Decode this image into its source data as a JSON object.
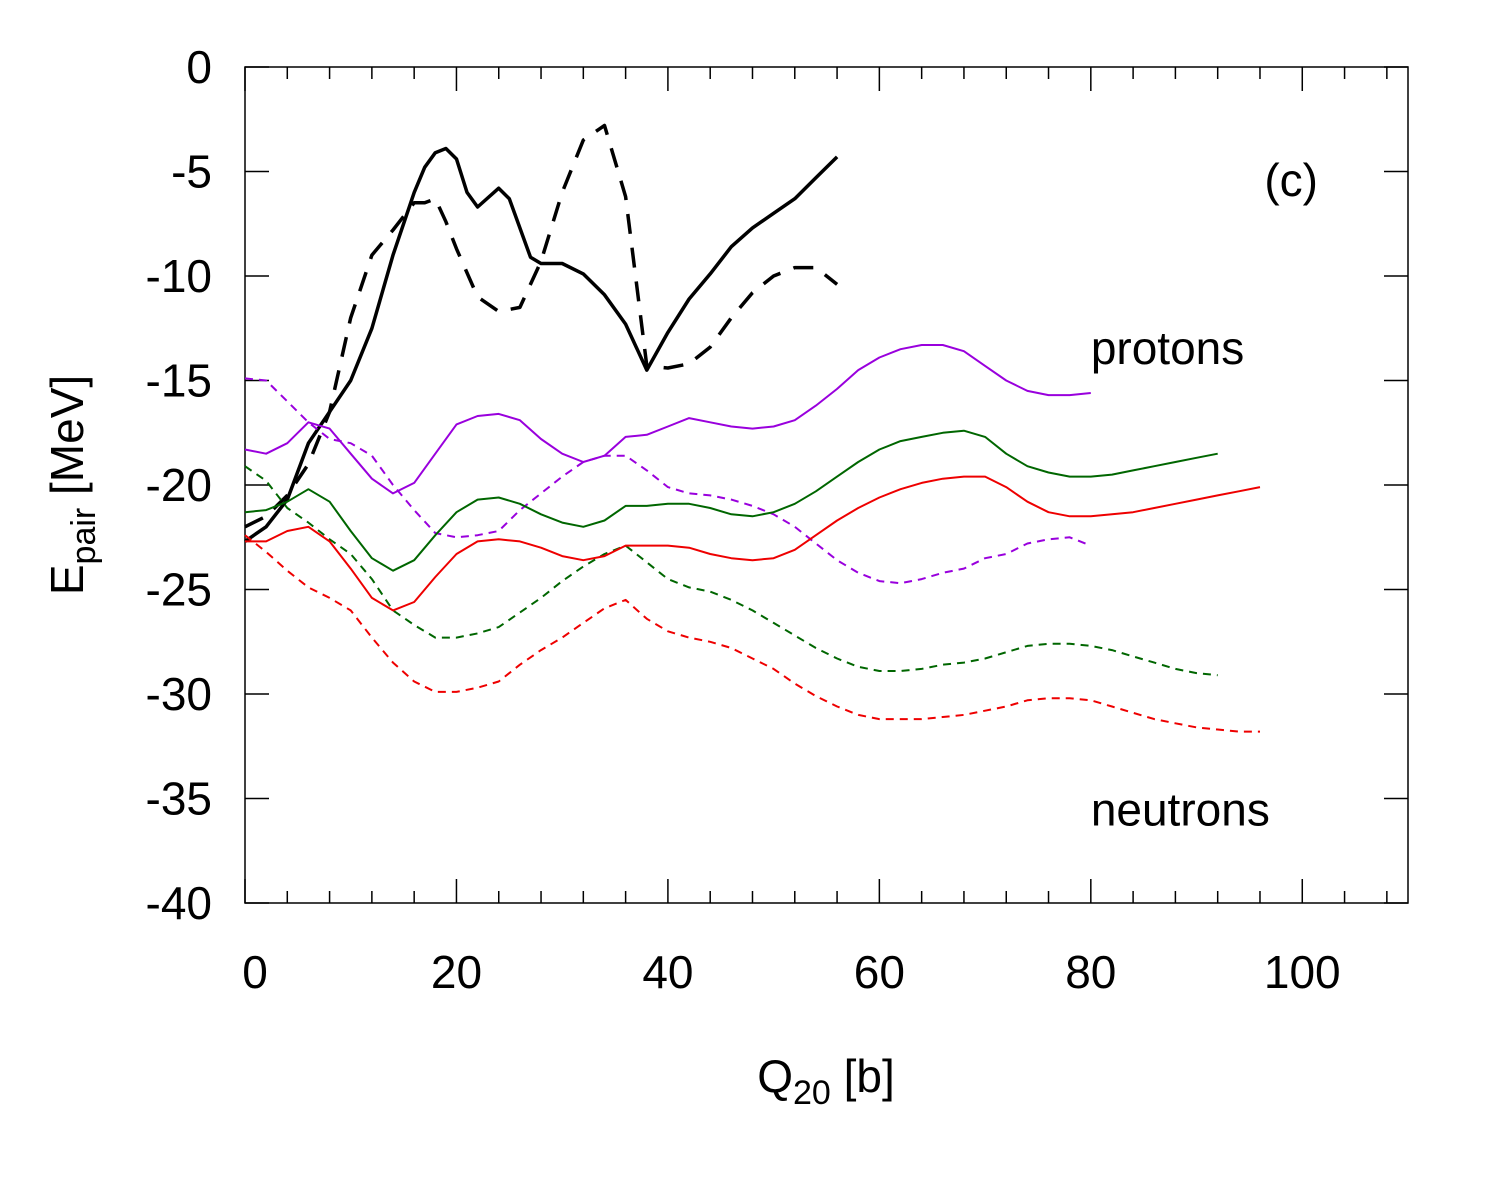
{
  "chart_data": {
    "type": "line",
    "panel_label": "(c)",
    "xlabel": {
      "main": "Q",
      "sub": "20",
      "unit": " [b]"
    },
    "ylabel": {
      "main": "E",
      "sub": "pair",
      "unit": " [MeV]"
    },
    "xlim": [
      0,
      110
    ],
    "ylim": [
      -40,
      0
    ],
    "xticks": [
      0,
      20,
      40,
      60,
      80,
      100
    ],
    "xtick_labels": [
      "0",
      "20",
      "40",
      "60",
      "80",
      "100"
    ],
    "yticks": [
      0,
      -5,
      -10,
      -15,
      -20,
      -25,
      -30,
      -35,
      -40
    ],
    "ytick_labels": [
      "0",
      "-5",
      "-10",
      "-15",
      "-20",
      "-25",
      "-30",
      "-35",
      "-40"
    ],
    "annotations": [
      {
        "name": "protons-label",
        "text": "protons",
        "x": 80,
        "y": -14.2
      },
      {
        "name": "neutrons-label",
        "text": "neutrons",
        "x": 80,
        "y": -36.3
      }
    ],
    "series": [
      {
        "name": "black-solid",
        "color": "#000000",
        "dash": "solid",
        "width": 3.5,
        "x": [
          0,
          2,
          4,
          6,
          8,
          10,
          12,
          14,
          16,
          17,
          18,
          19,
          20,
          21,
          22,
          24,
          25,
          27,
          28,
          30,
          32,
          34,
          36,
          38,
          40,
          42,
          44,
          46,
          48,
          50,
          52,
          54,
          56
        ],
        "y": [
          -22.7,
          -22,
          -20.7,
          -18,
          -16.5,
          -15,
          -12.5,
          -9,
          -6,
          -4.8,
          -4.1,
          -3.9,
          -4.4,
          -6,
          -6.7,
          -5.8,
          -6.3,
          -9.1,
          -9.4,
          -9.4,
          -9.9,
          -10.9,
          -12.3,
          -14.5,
          -12.7,
          -11.1,
          -9.9,
          -8.6,
          -7.7,
          -7,
          -6.3,
          -5.3,
          -4.3
        ]
      },
      {
        "name": "black-dashed",
        "color": "#000000",
        "dash": "20,14",
        "width": 3.5,
        "x": [
          0,
          2,
          4,
          6,
          8,
          10,
          12,
          14,
          16,
          17,
          18,
          19,
          20,
          22,
          24,
          26,
          28,
          30,
          32,
          34,
          36,
          38,
          40,
          42,
          44,
          46,
          48,
          50,
          52,
          54,
          56
        ],
        "y": [
          -22,
          -21.5,
          -20.5,
          -19,
          -16.5,
          -12,
          -9,
          -7.8,
          -6.5,
          -6.5,
          -6.3,
          -7.4,
          -8.7,
          -11,
          -11.7,
          -11.5,
          -9.3,
          -6,
          -3.5,
          -2.8,
          -6.2,
          -14.3,
          -14.4,
          -14.2,
          -13.4,
          -12,
          -10.8,
          -10,
          -9.6,
          -9.6,
          -10.4
        ]
      },
      {
        "name": "purple-solid",
        "color": "#9900dd",
        "dash": "solid",
        "width": 2,
        "x": [
          0,
          2,
          4,
          6,
          8,
          10,
          12,
          14,
          16,
          18,
          20,
          22,
          24,
          26,
          28,
          30,
          32,
          34,
          36,
          38,
          40,
          42,
          44,
          46,
          48,
          50,
          52,
          54,
          56,
          58,
          60,
          62,
          64,
          66,
          68,
          70,
          72,
          74,
          76,
          78,
          80
        ],
        "y": [
          -18.3,
          -18.5,
          -18,
          -17,
          -17.3,
          -18.5,
          -19.7,
          -20.4,
          -19.9,
          -18.5,
          -17.1,
          -16.7,
          -16.6,
          -16.9,
          -17.8,
          -18.5,
          -18.9,
          -18.6,
          -17.7,
          -17.6,
          -17.2,
          -16.8,
          -17,
          -17.2,
          -17.3,
          -17.2,
          -16.9,
          -16.2,
          -15.4,
          -14.5,
          -13.9,
          -13.5,
          -13.3,
          -13.3,
          -13.6,
          -14.3,
          -15,
          -15.5,
          -15.7,
          -15.7,
          -15.6
        ]
      },
      {
        "name": "purple-dashed",
        "color": "#9900dd",
        "dash": "8,6",
        "width": 2,
        "x": [
          0,
          2,
          4,
          6,
          8,
          10,
          12,
          14,
          16,
          18,
          20,
          22,
          24,
          26,
          28,
          30,
          32,
          34,
          36,
          38,
          40,
          42,
          44,
          46,
          48,
          50,
          52,
          54,
          56,
          58,
          60,
          62,
          64,
          66,
          68,
          70,
          72,
          74,
          76,
          78,
          80
        ],
        "y": [
          -14.9,
          -15,
          -16,
          -17,
          -17.8,
          -18,
          -18.6,
          -20,
          -21.2,
          -22.3,
          -22.5,
          -22.4,
          -22.2,
          -21.2,
          -20.4,
          -19.6,
          -18.9,
          -18.6,
          -18.6,
          -19.3,
          -20.1,
          -20.4,
          -20.5,
          -20.7,
          -21,
          -21.4,
          -22,
          -22.8,
          -23.6,
          -24.2,
          -24.6,
          -24.7,
          -24.5,
          -24.2,
          -24,
          -23.5,
          -23.3,
          -22.8,
          -22.6,
          -22.5,
          -22.9
        ]
      },
      {
        "name": "green-solid",
        "color": "#006600",
        "dash": "solid",
        "width": 2,
        "x": [
          0,
          2,
          4,
          6,
          8,
          10,
          12,
          14,
          16,
          18,
          20,
          22,
          24,
          26,
          28,
          30,
          32,
          34,
          36,
          38,
          40,
          42,
          44,
          46,
          48,
          50,
          52,
          54,
          56,
          58,
          60,
          62,
          64,
          66,
          68,
          70,
          72,
          74,
          76,
          78,
          80,
          82,
          84,
          86,
          88,
          90,
          92
        ],
        "y": [
          -21.3,
          -21.2,
          -20.8,
          -20.2,
          -20.8,
          -22.2,
          -23.5,
          -24.1,
          -23.6,
          -22.4,
          -21.3,
          -20.7,
          -20.6,
          -20.9,
          -21.4,
          -21.8,
          -22,
          -21.7,
          -21,
          -21,
          -20.9,
          -20.9,
          -21.1,
          -21.4,
          -21.5,
          -21.3,
          -20.9,
          -20.3,
          -19.6,
          -18.9,
          -18.3,
          -17.9,
          -17.7,
          -17.5,
          -17.4,
          -17.7,
          -18.5,
          -19.1,
          -19.4,
          -19.6,
          -19.6,
          -19.5,
          -19.3,
          -19.1,
          -18.9,
          -18.7,
          -18.5
        ]
      },
      {
        "name": "green-dashed",
        "color": "#006600",
        "dash": "8,6",
        "width": 2,
        "x": [
          0,
          2,
          4,
          6,
          8,
          10,
          12,
          14,
          16,
          18,
          20,
          22,
          24,
          26,
          28,
          30,
          32,
          34,
          36,
          38,
          40,
          42,
          44,
          46,
          48,
          50,
          52,
          54,
          56,
          58,
          60,
          62,
          64,
          66,
          68,
          70,
          72,
          74,
          76,
          78,
          80,
          82,
          84,
          86,
          88,
          90,
          92
        ],
        "y": [
          -19.1,
          -19.8,
          -21.1,
          -21.8,
          -22.6,
          -23.3,
          -24.5,
          -26,
          -26.7,
          -27.3,
          -27.3,
          -27.1,
          -26.8,
          -26.1,
          -25.4,
          -24.6,
          -23.9,
          -23.3,
          -22.9,
          -23.7,
          -24.5,
          -24.9,
          -25.1,
          -25.5,
          -26,
          -26.6,
          -27.2,
          -27.8,
          -28.3,
          -28.7,
          -28.9,
          -28.9,
          -28.8,
          -28.6,
          -28.5,
          -28.3,
          -28,
          -27.7,
          -27.6,
          -27.6,
          -27.7,
          -27.9,
          -28.2,
          -28.5,
          -28.8,
          -29,
          -29.1
        ]
      },
      {
        "name": "red-solid",
        "color": "#ee0000",
        "dash": "solid",
        "width": 2,
        "x": [
          0,
          2,
          4,
          6,
          8,
          10,
          12,
          14,
          16,
          18,
          20,
          22,
          24,
          26,
          28,
          30,
          32,
          34,
          36,
          38,
          40,
          42,
          44,
          46,
          48,
          50,
          52,
          54,
          56,
          58,
          60,
          62,
          64,
          66,
          68,
          70,
          72,
          74,
          76,
          78,
          80,
          82,
          84,
          86,
          88,
          90,
          92,
          94,
          96
        ],
        "y": [
          -22.7,
          -22.7,
          -22.2,
          -22,
          -22.7,
          -24,
          -25.4,
          -26,
          -25.6,
          -24.4,
          -23.3,
          -22.7,
          -22.6,
          -22.7,
          -23,
          -23.4,
          -23.6,
          -23.4,
          -22.9,
          -22.9,
          -22.9,
          -23,
          -23.3,
          -23.5,
          -23.6,
          -23.5,
          -23.1,
          -22.4,
          -21.7,
          -21.1,
          -20.6,
          -20.2,
          -19.9,
          -19.7,
          -19.6,
          -19.6,
          -20.1,
          -20.8,
          -21.3,
          -21.5,
          -21.5,
          -21.4,
          -21.3,
          -21.1,
          -20.9,
          -20.7,
          -20.5,
          -20.3,
          -20.1
        ]
      },
      {
        "name": "red-dashed",
        "color": "#ee0000",
        "dash": "8,6",
        "width": 2,
        "x": [
          0,
          2,
          4,
          6,
          8,
          10,
          12,
          14,
          16,
          18,
          20,
          22,
          24,
          26,
          28,
          30,
          32,
          34,
          36,
          38,
          40,
          42,
          44,
          46,
          48,
          50,
          52,
          54,
          56,
          58,
          60,
          62,
          64,
          66,
          68,
          70,
          72,
          74,
          76,
          78,
          80,
          82,
          84,
          86,
          88,
          90,
          92,
          94,
          96
        ],
        "y": [
          -22.4,
          -23.2,
          -24.1,
          -24.9,
          -25.4,
          -26,
          -27.3,
          -28.5,
          -29.4,
          -29.9,
          -29.9,
          -29.7,
          -29.4,
          -28.6,
          -27.9,
          -27.3,
          -26.6,
          -25.9,
          -25.5,
          -26.4,
          -27,
          -27.3,
          -27.5,
          -27.8,
          -28.3,
          -28.8,
          -29.5,
          -30.1,
          -30.6,
          -31,
          -31.2,
          -31.2,
          -31.2,
          -31.1,
          -31,
          -30.8,
          -30.6,
          -30.3,
          -30.2,
          -30.2,
          -30.3,
          -30.6,
          -30.9,
          -31.2,
          -31.4,
          -31.6,
          -31.7,
          -31.8,
          -31.8
        ]
      }
    ]
  }
}
